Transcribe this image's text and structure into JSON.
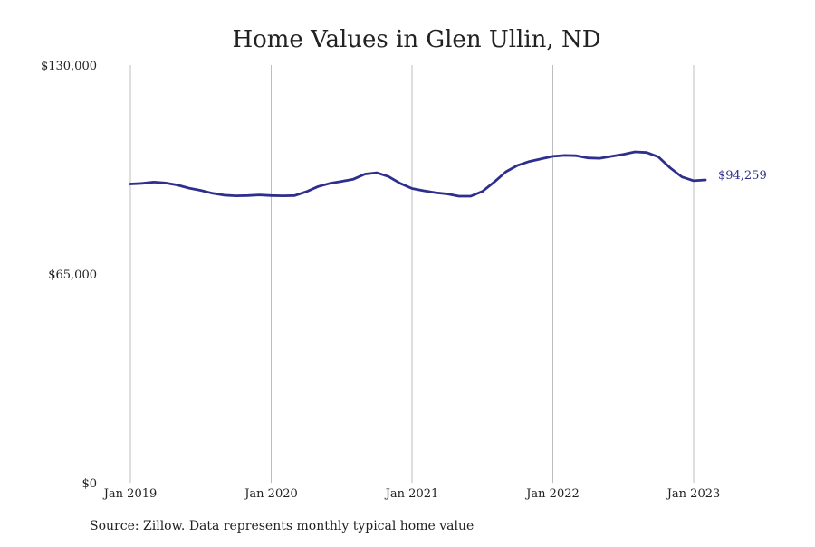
{
  "chart_data": {
    "type": "line",
    "title": "Home Values in Glen Ullin, ND",
    "source_note": "Source: Zillow. Data represents monthly typical home value",
    "xlabel": "",
    "ylabel": "",
    "ylim": [
      0,
      130000
    ],
    "y_ticks": [
      {
        "value": 0,
        "label": "$0"
      },
      {
        "value": 65000,
        "label": "$65,000"
      },
      {
        "value": 130000,
        "label": "$130,000"
      }
    ],
    "x_ticks": [
      {
        "value": "2019-01",
        "label": "Jan 2019"
      },
      {
        "value": "2020-01",
        "label": "Jan 2020"
      },
      {
        "value": "2021-01",
        "label": "Jan 2021"
      },
      {
        "value": "2022-01",
        "label": "Jan 2022"
      },
      {
        "value": "2023-01",
        "label": "Jan 2023"
      }
    ],
    "xlim": [
      "2019-01",
      "2023-02"
    ],
    "grid": {
      "x": true,
      "y": false
    },
    "end_label": "$94,259",
    "series": [
      {
        "color": "#2e2e8f",
        "x": [
          "2019-01",
          "2019-02",
          "2019-03",
          "2019-04",
          "2019-05",
          "2019-06",
          "2019-07",
          "2019-08",
          "2019-09",
          "2019-10",
          "2019-11",
          "2019-12",
          "2020-01",
          "2020-02",
          "2020-03",
          "2020-04",
          "2020-05",
          "2020-06",
          "2020-07",
          "2020-08",
          "2020-09",
          "2020-10",
          "2020-11",
          "2020-12",
          "2021-01",
          "2021-02",
          "2021-03",
          "2021-04",
          "2021-05",
          "2021-06",
          "2021-07",
          "2021-08",
          "2021-09",
          "2021-10",
          "2021-11",
          "2021-12",
          "2022-01",
          "2022-02",
          "2022-03",
          "2022-04",
          "2022-05",
          "2022-06",
          "2022-07",
          "2022-08",
          "2022-09",
          "2022-10",
          "2022-11",
          "2022-12",
          "2023-01",
          "2023-02"
        ],
        "y": [
          93000,
          93200,
          93600,
          93300,
          92700,
          91700,
          91000,
          90100,
          89500,
          89300,
          89400,
          89600,
          89400,
          89300,
          89400,
          90600,
          92200,
          93200,
          93800,
          94500,
          96100,
          96500,
          95300,
          93200,
          91600,
          90900,
          90300,
          89900,
          89200,
          89200,
          90700,
          93600,
          96800,
          98800,
          100000,
          100800,
          101600,
          101900,
          101800,
          101100,
          101000,
          101600,
          102200,
          103000,
          102800,
          101400,
          98000,
          95200,
          94000,
          94259
        ]
      }
    ]
  }
}
